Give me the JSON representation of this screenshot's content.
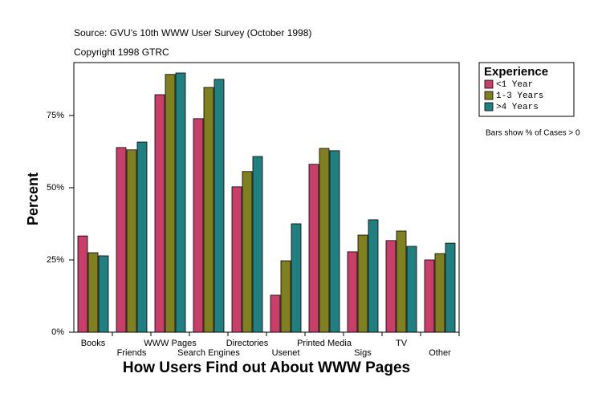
{
  "chart_data": {
    "type": "bar",
    "title": "Source: GVU's 10th WWW User Survey (October 1998)",
    "subtitle": "Copyright 1998 GTRC",
    "x_label": "How Users Find out About WWW Pages",
    "y_label": "Percent",
    "legend_title": "Experience",
    "annotation": "Bars show % of Cases > 0",
    "categories": [
      "Books",
      "Friends",
      "WWW Pages",
      "Search Engines",
      "Directories",
      "Usenet",
      "Printed Media",
      "Sigs",
      "TV",
      "Other"
    ],
    "series": [
      {
        "name": "<1 Year",
        "color": "#c8406a",
        "values": [
          33.3,
          63.9,
          82.2,
          73.9,
          50.3,
          12.8,
          58.1,
          27.8,
          31.7,
          25.0
        ]
      },
      {
        "name": "1-3 Years",
        "color": "#808020",
        "values": [
          27.5,
          63.1,
          89.2,
          84.7,
          55.6,
          24.7,
          63.6,
          33.6,
          35.0,
          27.2
        ]
      },
      {
        "name": ">4 Years",
        "color": "#208080",
        "values": [
          26.4,
          65.8,
          89.7,
          87.5,
          60.8,
          37.5,
          62.8,
          38.9,
          29.7,
          30.8
        ]
      }
    ],
    "ylim": [
      0,
      93.3
    ],
    "yticks": [
      {
        "value": 0,
        "label": "0%"
      },
      {
        "value": 25,
        "label": "25%"
      },
      {
        "value": 50,
        "label": "50%"
      },
      {
        "value": 75,
        "label": "75%"
      }
    ],
    "legend_position": "right"
  }
}
